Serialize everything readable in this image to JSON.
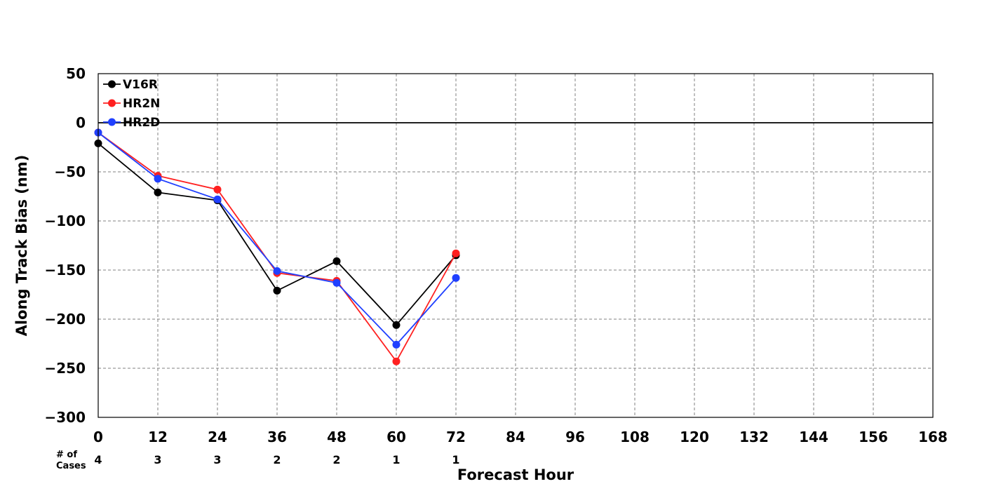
{
  "chart_data": {
    "type": "line",
    "xlabel": "Forecast Hour",
    "ylabel": "Along Track Bias (nm)",
    "xlim": [
      0,
      168
    ],
    "ylim": [
      -300,
      50
    ],
    "x_ticks": [
      0,
      12,
      24,
      36,
      48,
      60,
      72,
      84,
      96,
      108,
      120,
      132,
      144,
      156,
      168
    ],
    "y_ticks": [
      50,
      0,
      -50,
      -100,
      -150,
      -200,
      -250,
      -300
    ],
    "y_tick_labels": [
      "50",
      "0",
      "−50",
      "−100",
      "−150",
      "−200",
      "−250",
      "−300"
    ],
    "grid": true,
    "zero_line": true,
    "legend_position": "top-left",
    "cases_label": [
      "# of",
      "Cases"
    ],
    "cases": [
      {
        "x": 0,
        "n": "4"
      },
      {
        "x": 12,
        "n": "3"
      },
      {
        "x": 24,
        "n": "3"
      },
      {
        "x": 36,
        "n": "2"
      },
      {
        "x": 48,
        "n": "2"
      },
      {
        "x": 60,
        "n": "1"
      },
      {
        "x": 72,
        "n": "1"
      }
    ],
    "series": [
      {
        "name": "V16R",
        "color": "#000000",
        "x": [
          0,
          12,
          24,
          36,
          48,
          60,
          72
        ],
        "y": [
          -21,
          -71,
          -79,
          -171,
          -141,
          -206,
          -135
        ]
      },
      {
        "name": "HR2N",
        "color": "#ff2020",
        "x": [
          0,
          12,
          24,
          36,
          48,
          60,
          72
        ],
        "y": [
          -10,
          -54,
          -68,
          -153,
          -161,
          -243,
          -133
        ]
      },
      {
        "name": "HR2D",
        "color": "#2040ff",
        "x": [
          0,
          12,
          24,
          36,
          48,
          60,
          72
        ],
        "y": [
          -10,
          -57,
          -78,
          -151,
          -163,
          -226,
          -158
        ]
      }
    ]
  }
}
